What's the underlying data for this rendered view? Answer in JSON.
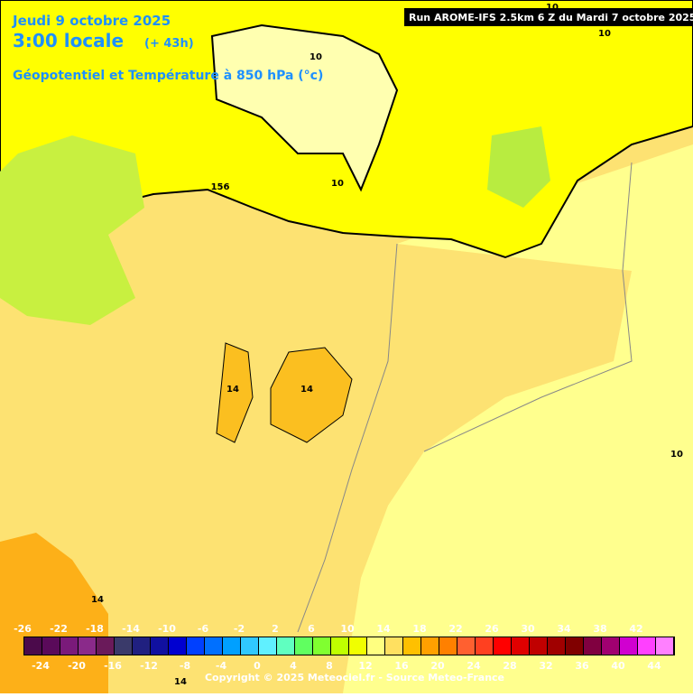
{
  "header": {
    "date": "Jeudi 9 octobre 2025",
    "time": "3:00 locale",
    "lead": "(+ 43h)",
    "field": "Géopotentiel et Température à 850 hPa (°c)",
    "run": "Run AROME-IFS 2.5km 6 Z du Mardi 7 octobre 2025"
  },
  "contour_labels": [
    "10",
    "10",
    "10",
    "10",
    "156",
    "14",
    "14",
    "14",
    "10",
    "14"
  ],
  "colorbar": {
    "top_labels": [
      -26,
      -22,
      -18,
      -14,
      -10,
      -6,
      -2,
      2,
      6,
      10,
      14,
      18,
      22,
      26,
      30,
      34,
      38,
      42
    ],
    "bottom_labels": [
      -24,
      -20,
      -16,
      -12,
      -8,
      -4,
      0,
      4,
      8,
      12,
      16,
      20,
      24,
      28,
      32,
      36,
      40,
      44
    ],
    "colors": [
      "#4b0a4b",
      "#5a0a5a",
      "#7a1a7a",
      "#8a2a8a",
      "#6a1a5a",
      "#3a3a6a",
      "#202080",
      "#1010a0",
      "#0000d0",
      "#0040ff",
      "#0070ff",
      "#00a0ff",
      "#30c8ff",
      "#60f0ff",
      "#60ffc0",
      "#60ff60",
      "#80ff30",
      "#c0ff00",
      "#f0ff00",
      "#ffff80",
      "#ffe060",
      "#ffc000",
      "#ffa000",
      "#ff8000",
      "#ff6030",
      "#ff4020",
      "#ff0000",
      "#e00000",
      "#c00000",
      "#a00000",
      "#800000",
      "#800040",
      "#a00070",
      "#d000d0",
      "#ff40ff",
      "#ff80ff"
    ]
  },
  "footer": {
    "copyright": "Copyright © 2025 Meteociel.fr - Source Meteo-France"
  }
}
